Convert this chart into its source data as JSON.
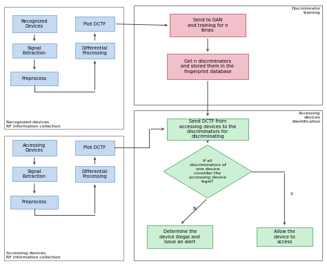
{
  "figure_size": [
    4.74,
    3.86
  ],
  "dpi": 100,
  "bg_color": "#ffffff",
  "colors": {
    "blue_box": "#c5d9f1",
    "pink_box": "#f2c0cb",
    "green_box": "#ccf0d4",
    "border_blue": "#8ab4d4",
    "border_pink": "#c07080",
    "border_green": "#70b080",
    "arrow": "#444444",
    "outline": "#999999"
  },
  "xlim": [
    0,
    10
  ],
  "ylim": [
    0,
    10
  ],
  "font_size": 5.2,
  "small_font": 4.8,
  "tiny_font": 4.5
}
